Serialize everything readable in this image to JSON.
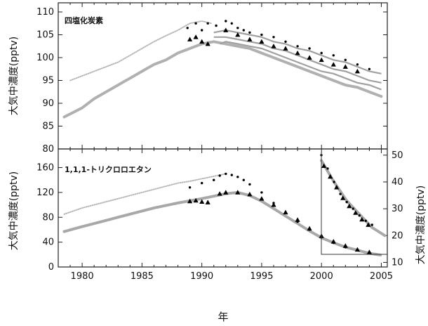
{
  "figure": {
    "xlabel": "年",
    "top_ylabel": "大気中濃度(pptv)",
    "bottom_ylabel": "大気中濃度(pptv)",
    "inset_ylabel": "大気中濃度(pptv)"
  },
  "chart_data": [
    {
      "type": "line",
      "title": "四塩化炭素",
      "xlabel": "",
      "ylabel": "大気中濃度(pptv)",
      "xlim": [
        1978,
        2005.5
      ],
      "ylim": [
        80,
        112
      ],
      "yticks": [
        80,
        85,
        90,
        95,
        100,
        105,
        110
      ],
      "series": [
        {
          "color": "#b8b8b8",
          "style": "thin-dots",
          "x": [
            1979,
            1980,
            1981,
            1982,
            1983,
            1984,
            1985,
            1986,
            1987,
            1988,
            1989,
            1990,
            1990.8
          ],
          "y": [
            95,
            96,
            97,
            98,
            99,
            100.5,
            102,
            103.5,
            104.8,
            106,
            107.5,
            108,
            107.5
          ]
        },
        {
          "color": "#b0b0b0",
          "style": "thick-dots",
          "x": [
            1978.5,
            1980,
            1981,
            1982,
            1983,
            1984,
            1985,
            1986,
            1987,
            1988,
            1989,
            1990,
            1991,
            1992,
            1993,
            1994,
            1995,
            1996,
            1997,
            1998,
            1999,
            2000,
            2001,
            2002,
            2003,
            2004,
            2005
          ],
          "y": [
            87,
            89,
            91,
            92.5,
            94,
            95.5,
            97,
            98.5,
            99.5,
            101,
            102,
            103,
            103.5,
            103,
            102.5,
            102,
            101,
            100,
            99,
            98,
            97,
            96,
            95,
            94,
            93.5,
            92.5,
            91.5
          ]
        },
        {
          "color": "#a0a0a0",
          "style": "line",
          "x": [
            1991,
            1992,
            1993,
            1994,
            1995,
            1996,
            1997,
            1998,
            1999,
            2000,
            2001,
            2002,
            2003,
            2004,
            2005
          ],
          "y": [
            105.5,
            106,
            105.5,
            105,
            104.5,
            103.5,
            103,
            102,
            101.5,
            100.5,
            99.5,
            99,
            98,
            97,
            96.5
          ]
        },
        {
          "color": "#a0a0a0",
          "style": "line",
          "x": [
            1991,
            1992,
            1993,
            1994,
            1995,
            1996,
            1997,
            1998,
            1999,
            2000,
            2001,
            2002,
            2003,
            2004,
            2005
          ],
          "y": [
            104.5,
            104.5,
            104,
            103.5,
            103,
            102,
            101.5,
            100.5,
            99.5,
            98.5,
            97.5,
            97,
            96,
            95,
            94.5
          ]
        },
        {
          "color": "#a0a0a0",
          "style": "line",
          "x": [
            1991.5,
            1992,
            1993,
            1994,
            1995,
            1996,
            1997,
            1998,
            1999,
            2000,
            2001,
            2002,
            2003,
            2004,
            2005
          ],
          "y": [
            103,
            103.5,
            103,
            102.5,
            102,
            101,
            100,
            99,
            98,
            97,
            96.5,
            95.5,
            94.5,
            94,
            93
          ]
        },
        {
          "color": "#000000",
          "style": "dots",
          "x": [
            1988.8,
            1989.5,
            1990,
            1990.5,
            1991.2,
            1992,
            1992.5,
            1993,
            1993.5,
            1994,
            1995,
            1996,
            1997,
            1998,
            1999,
            2000,
            2001,
            2002,
            2003,
            2004
          ],
          "y": [
            106.5,
            107.5,
            106,
            107.5,
            107,
            108,
            107.5,
            106.5,
            106,
            105.5,
            105,
            104.5,
            103.5,
            102.5,
            102,
            101,
            100.5,
            99.5,
            98.5,
            97.5
          ]
        },
        {
          "color": "#000000",
          "style": "triangles",
          "x": [
            1989,
            1989.5,
            1990,
            1990.5,
            1992,
            1993,
            1994,
            1995,
            1996,
            1997,
            1998,
            1999,
            2000,
            2001,
            2002,
            2003
          ],
          "y": [
            104,
            104.5,
            103.5,
            103,
            106,
            105,
            104,
            103.5,
            102.5,
            102,
            101,
            100,
            99.5,
            98.5,
            98,
            97
          ]
        }
      ]
    },
    {
      "type": "line",
      "title": "1,1,1-トリクロロエタン",
      "xlabel": "年",
      "ylabel": "大気中濃度(pptv)",
      "xlim": [
        1978,
        2005.5
      ],
      "ylim": [
        0,
        190
      ],
      "xticks": [
        1980,
        1985,
        1990,
        1995,
        2000,
        2005
      ],
      "yticks": [
        0,
        40,
        80,
        120,
        160
      ],
      "series": [
        {
          "color": "#b8b8b8",
          "style": "thin-dots",
          "x": [
            1978.5,
            1980,
            1982,
            1984,
            1986,
            1988,
            1989,
            1990,
            1991,
            1992
          ],
          "y": [
            85,
            95,
            105,
            115,
            125,
            135,
            138,
            142,
            146,
            150
          ]
        },
        {
          "color": "#a8a8a8",
          "style": "thick-dots",
          "x": [
            1978.5,
            1980,
            1982,
            1984,
            1986,
            1988,
            1990,
            1992,
            1993,
            1994,
            1995,
            1996,
            1997,
            1998,
            1999,
            2000,
            2001,
            2002,
            2003,
            2004,
            2005
          ],
          "y": [
            57,
            65,
            75,
            85,
            95,
            103,
            110,
            118,
            120,
            115,
            106,
            94,
            82,
            70,
            58,
            47,
            39,
            32,
            27,
            22,
            19
          ]
        },
        {
          "color": "#000000",
          "style": "dots",
          "x": [
            1989,
            1990,
            1991,
            1991.5,
            1992,
            1992.5,
            1993,
            1993.5,
            1994,
            1995,
            1996,
            1997,
            1998,
            1999,
            2000,
            2001,
            2002,
            2003,
            2004
          ],
          "y": [
            128,
            135,
            140,
            147,
            150,
            148,
            145,
            140,
            133,
            120,
            103,
            88,
            73,
            60,
            48,
            39,
            32,
            27,
            23
          ]
        },
        {
          "color": "#000000",
          "style": "triangles",
          "x": [
            1989,
            1989.5,
            1990,
            1990.5,
            1991.5,
            1992,
            1993,
            1994,
            1995,
            1996,
            1997,
            1998,
            1999,
            2000,
            2001,
            2002,
            2003,
            2004
          ],
          "y": [
            106,
            107,
            105,
            104,
            118,
            120,
            120,
            117,
            110,
            100,
            88,
            76,
            62,
            50,
            41,
            34,
            28,
            24
          ]
        }
      ]
    },
    {
      "type": "line",
      "title": "",
      "xlabel": "",
      "ylabel": "大気中濃度(pptv)",
      "xlim": [
        2000,
        2005.2
      ],
      "ylim": [
        13,
        51
      ],
      "yticks": [
        10,
        20,
        30,
        40,
        50
      ],
      "series": [
        {
          "color": "#a8a8a8",
          "style": "thick-dots",
          "x": [
            2000,
            2001,
            2002,
            2003,
            2004,
            2005
          ],
          "y": [
            48,
            40,
            33,
            28,
            23,
            20
          ]
        },
        {
          "color": "#000000",
          "style": "dots",
          "x": [
            2000,
            2000.5,
            2001,
            2001.5,
            2002,
            2002.5,
            2003,
            2003.5,
            2004
          ],
          "y": [
            50,
            45,
            40,
            35.5,
            32.5,
            30,
            27.5,
            25.5,
            24
          ]
        },
        {
          "color": "#000000",
          "style": "triangles",
          "x": [
            2000.2,
            2000.7,
            2001.2,
            2001.7,
            2002.2,
            2002.7,
            2003.2,
            2003.7
          ],
          "y": [
            46,
            42,
            38,
            34,
            31,
            28.5,
            26,
            24
          ]
        }
      ]
    }
  ]
}
